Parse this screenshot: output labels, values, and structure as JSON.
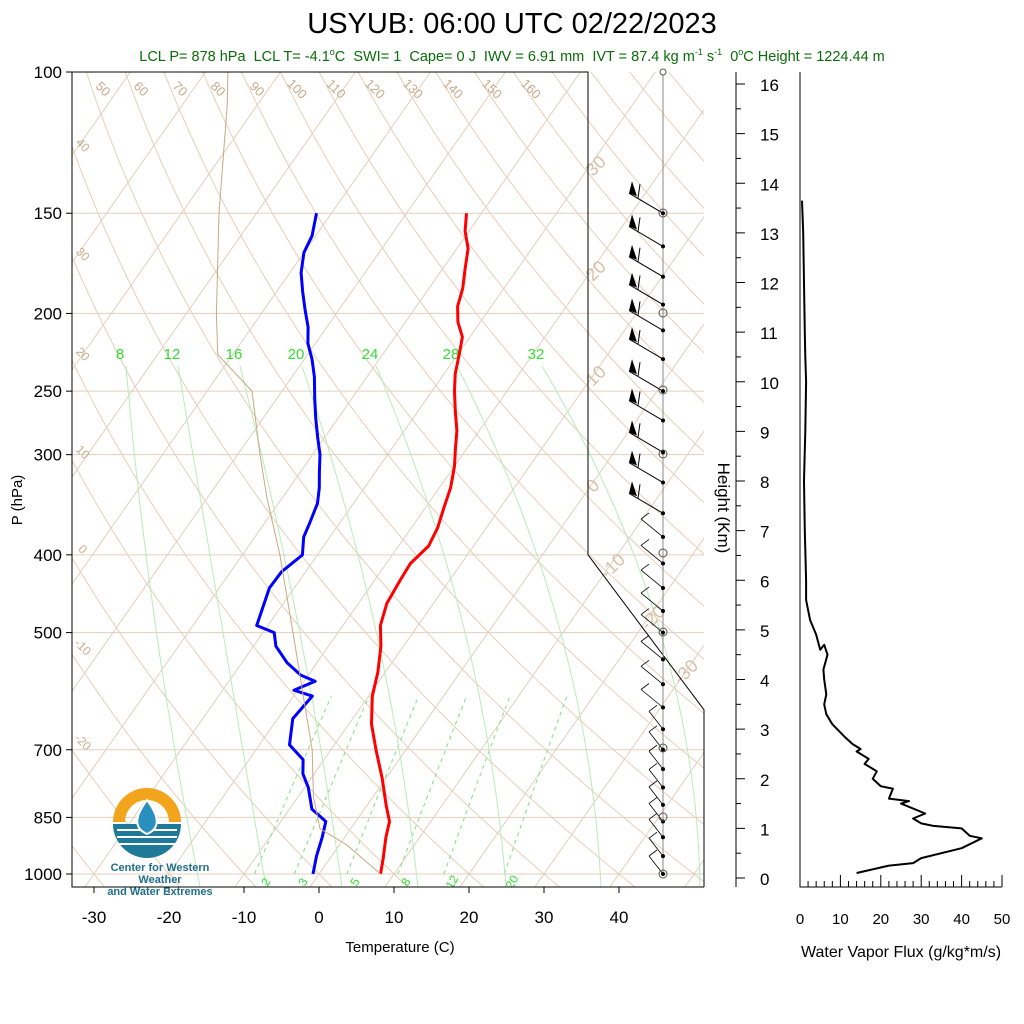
{
  "header": {
    "title": "USYUB: 06:00 UTC 02/22/2023",
    "lcl_p": "LCL P= 878 hPa",
    "lcl_t": "LCL T= -4.1",
    "lcl_t_unit": "C",
    "swi": "SWI= 1",
    "cape": "Cape= 0 J",
    "iwv": "IWV = 6.91 mm",
    "ivt_a": "IVT = 87.4 kg m",
    "ivt_b": " s",
    "ivt_exp": "-1",
    "zero_height_prefix": "0",
    "zero_height": "C Height = 1224.44 m"
  },
  "logo": {
    "line1": "Center for Western Weather",
    "line2": "and Water Extremes",
    "colors": {
      "sun": "#f2a51c",
      "water": "#1f7a99",
      "drop": "#2a8fbf"
    }
  },
  "chart_data": [
    {
      "type": "line",
      "name": "skew-t",
      "xlabel": "Temperature (C)",
      "ylabel": "P (hPa)",
      "xlim": [
        -35,
        52
      ],
      "ylim": [
        1050,
        100
      ],
      "y_scale": "log",
      "pressure_ticks": [
        100,
        150,
        200,
        250,
        300,
        400,
        500,
        700,
        850,
        1000
      ],
      "temp_ticks": [
        -30,
        -20,
        -10,
        0,
        10,
        20,
        30,
        40
      ],
      "dry_adiabat_labels": [
        "50",
        "60",
        "70",
        "80",
        "90",
        "100",
        "110",
        "120",
        "130",
        "140",
        "150",
        "160",
        "40",
        "30",
        "20",
        "10",
        "0",
        "-10",
        "-20"
      ],
      "moist_adiabat_labels": [
        "30",
        "20",
        "10",
        "0",
        "-10",
        "-20",
        "-30"
      ],
      "mixing_ratio_labels": [
        "8",
        "12",
        "16",
        "20",
        "24",
        "28",
        "32"
      ],
      "mixing_ratio_bottom_labels": [
        "2",
        "3",
        "5",
        "8",
        "12",
        "20"
      ],
      "series": [
        {
          "name": "temperature",
          "color": "#ff0000",
          "points": [
            [
              8.2,
              1000
            ],
            [
              7.2,
              960
            ],
            [
              5.5,
              900
            ],
            [
              4.5,
              860
            ],
            [
              2.5,
              820
            ],
            [
              -0.5,
              760
            ],
            [
              -4,
              700
            ],
            [
              -7,
              650
            ],
            [
              -9.5,
              600
            ],
            [
              -11,
              560
            ],
            [
              -13,
              520
            ],
            [
              -15,
              490
            ],
            [
              -16.2,
              460
            ],
            [
              -16.6,
              430
            ],
            [
              -16.8,
              410
            ],
            [
              -16,
              390
            ],
            [
              -16.5,
              370
            ],
            [
              -17.5,
              350
            ],
            [
              -18.5,
              330
            ],
            [
              -20,
              310
            ],
            [
              -21.5,
              295
            ],
            [
              -23,
              280
            ],
            [
              -25,
              265
            ],
            [
              -27,
              250
            ],
            [
              -28.5,
              238
            ],
            [
              -29.8,
              225
            ],
            [
              -31,
              214
            ],
            [
              -33,
              205
            ],
            [
              -34.5,
              196
            ],
            [
              -35.5,
              186
            ],
            [
              -37,
              176
            ],
            [
              -38.5,
              166
            ],
            [
              -40.5,
              158
            ],
            [
              -42,
              150
            ]
          ]
        },
        {
          "name": "dewpoint",
          "color": "#0000ff",
          "points": [
            [
              -0.8,
              1000
            ],
            [
              -2,
              950
            ],
            [
              -3,
              900
            ],
            [
              -4,
              860
            ],
            [
              -7,
              830
            ],
            [
              -9.5,
              780
            ],
            [
              -11.5,
              750
            ],
            [
              -12.8,
              720
            ],
            [
              -16,
              690
            ],
            [
              -18,
              640
            ],
            [
              -17.5,
              600
            ],
            [
              -20.5,
              590
            ],
            [
              -18.5,
              575
            ],
            [
              -21,
              565
            ],
            [
              -24,
              545
            ],
            [
              -27,
              520
            ],
            [
              -28.5,
              500
            ],
            [
              -31.5,
              490
            ],
            [
              -32.2,
              470
            ],
            [
              -33.3,
              440
            ],
            [
              -33.2,
              420
            ],
            [
              -32,
              400
            ],
            [
              -33.5,
              380
            ],
            [
              -34,
              365
            ],
            [
              -34.8,
              345
            ],
            [
              -36,
              330
            ],
            [
              -37.5,
              315
            ],
            [
              -39,
              300
            ],
            [
              -41,
              285
            ],
            [
              -43,
              270
            ],
            [
              -45,
              255
            ],
            [
              -47,
              240
            ],
            [
              -49,
              228
            ],
            [
              -51,
              218
            ],
            [
              -52.5,
              208
            ],
            [
              -54.5,
              198
            ],
            [
              -56.5,
              188
            ],
            [
              -58.5,
              178
            ],
            [
              -60,
              168
            ],
            [
              -60.5,
              160
            ],
            [
              -62,
              150
            ]
          ]
        },
        {
          "name": "parcel",
          "color": "#c8a882",
          "points": [
            [
              8.2,
              1000
            ],
            [
              1.0,
              920
            ],
            [
              -4.1,
              878
            ],
            [
              -8,
              800
            ],
            [
              -12.5,
              700
            ],
            [
              -18.7,
              600
            ],
            [
              -26,
              500
            ],
            [
              -35,
              400
            ],
            [
              -42,
              340
            ],
            [
              -47,
              300
            ],
            [
              -54,
              250
            ],
            [
              -62,
              225
            ],
            [
              -66,
              200
            ],
            [
              -75,
              150
            ],
            [
              -84,
              110
            ],
            [
              -87,
              100
            ]
          ]
        }
      ]
    },
    {
      "type": "line",
      "name": "water-vapor-flux",
      "xlabel": "Water Vapor Flux (g/kg*m/s)",
      "ylabel": "Height (Km)",
      "xlim": [
        0,
        50
      ],
      "ylim": [
        0,
        16.5
      ],
      "x_ticks": [
        0,
        10,
        20,
        30,
        40,
        50
      ],
      "y_ticks": [
        0,
        1,
        2,
        3,
        4,
        5,
        6,
        7,
        8,
        9,
        10,
        11,
        12,
        13,
        14,
        15,
        16
      ],
      "series": [
        {
          "name": "flux",
          "color": "#000000",
          "points": [
            [
              14,
              0.1
            ],
            [
              22,
              0.25
            ],
            [
              28,
              0.3
            ],
            [
              30,
              0.4
            ],
            [
              40,
              0.6
            ],
            [
              45,
              0.8
            ],
            [
              42,
              0.85
            ],
            [
              40,
              1.0
            ],
            [
              33,
              1.05
            ],
            [
              30,
              1.1
            ],
            [
              28,
              1.2
            ],
            [
              31,
              1.3
            ],
            [
              25,
              1.5
            ],
            [
              27,
              1.55
            ],
            [
              22,
              1.6
            ],
            [
              23,
              1.8
            ],
            [
              20,
              1.85
            ],
            [
              18,
              2.0
            ],
            [
              19,
              2.15
            ],
            [
              16,
              2.3
            ],
            [
              17,
              2.4
            ],
            [
              14,
              2.55
            ],
            [
              15,
              2.6
            ],
            [
              13,
              2.7
            ],
            [
              11,
              2.85
            ],
            [
              8,
              3.1
            ],
            [
              6.5,
              3.3
            ],
            [
              6,
              3.5
            ],
            [
              6.5,
              3.7
            ],
            [
              6,
              4.0
            ],
            [
              5.8,
              4.2
            ],
            [
              6.8,
              4.5
            ],
            [
              6,
              4.7
            ],
            [
              5,
              4.6
            ],
            [
              4,
              4.9
            ],
            [
              2.5,
              5.2
            ],
            [
              1.5,
              5.6
            ],
            [
              1.5,
              6.0
            ],
            [
              1.2,
              7.0
            ],
            [
              1.0,
              8.0
            ],
            [
              1.3,
              9.0
            ],
            [
              1.5,
              10.0
            ],
            [
              1.3,
              10.5
            ],
            [
              1.2,
              11.0
            ],
            [
              1.0,
              12.0
            ],
            [
              0.8,
              13.0
            ],
            [
              0.5,
              13.65
            ]
          ]
        }
      ]
    }
  ],
  "wind_barbs": {
    "label": "wind profile",
    "upper_pressures": [
      150,
      165,
      180,
      195,
      210,
      228,
      250,
      272,
      298,
      325,
      355
    ],
    "lower_pressures": [
      380,
      410,
      440,
      470,
      500,
      540,
      580,
      620,
      660,
      700,
      740,
      780,
      820,
      860,
      900,
      950,
      1000
    ]
  }
}
